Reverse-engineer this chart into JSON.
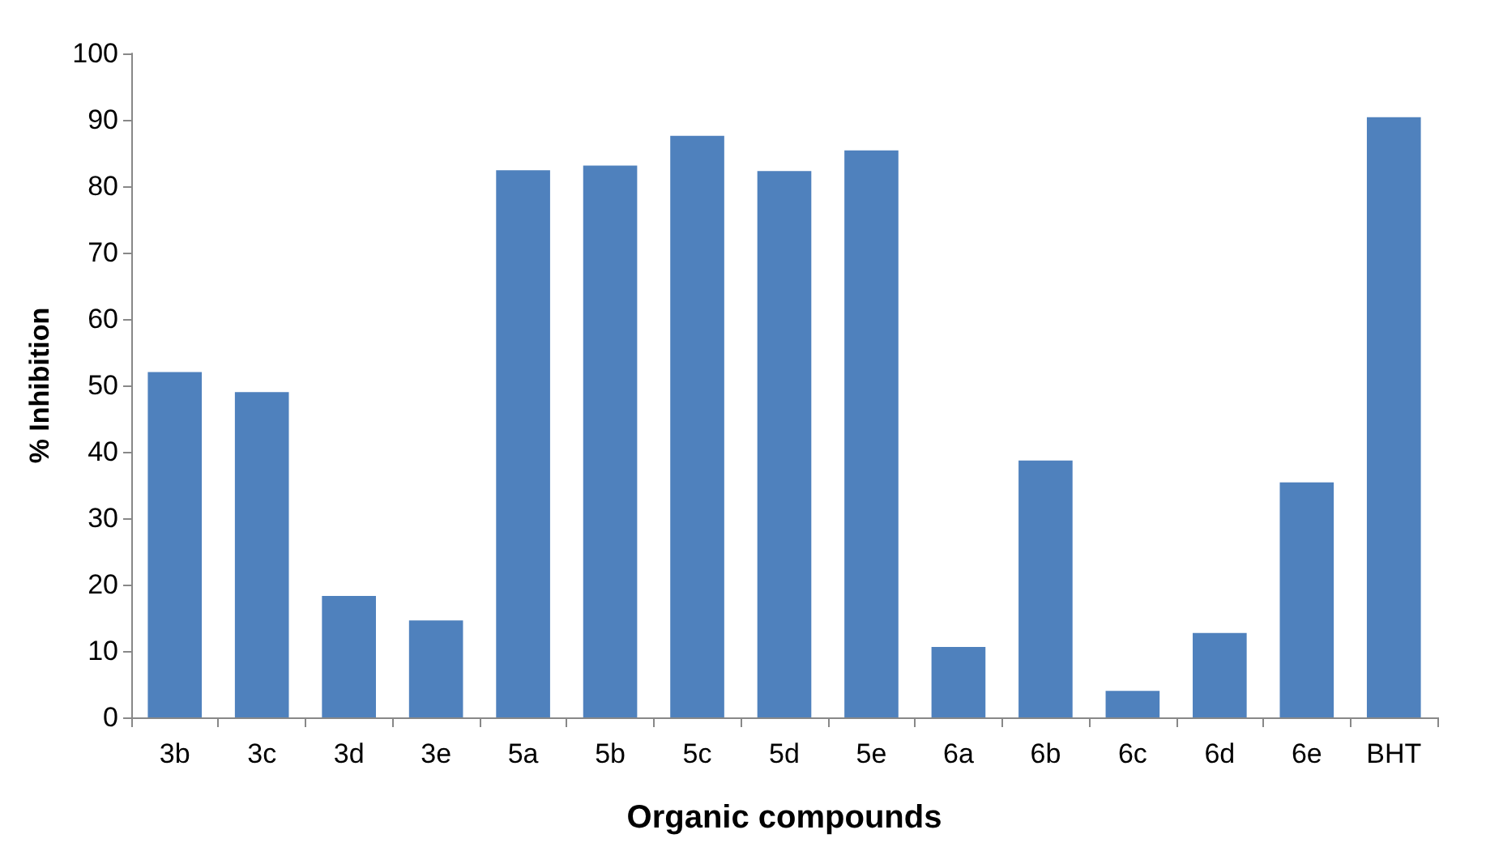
{
  "chart_data": {
    "type": "bar",
    "xlabel": "Organic compounds",
    "ylabel": "% Inhibition",
    "categories": [
      "3b",
      "3c",
      "3d",
      "3e",
      "5a",
      "5b",
      "5c",
      "5d",
      "5e",
      "6a",
      "6b",
      "6c",
      "6d",
      "6e",
      "BHT"
    ],
    "values": [
      52,
      49,
      18.3,
      14.6,
      82.4,
      83.1,
      87.6,
      82.3,
      85.4,
      10.6,
      38.7,
      4,
      12.7,
      35.4,
      90.4
    ],
    "color": "#4f81bd",
    "ylim": [
      0,
      100
    ],
    "yticks": [
      0,
      10,
      20,
      30,
      40,
      50,
      60,
      70,
      80,
      90,
      100
    ],
    "grid": false
  }
}
